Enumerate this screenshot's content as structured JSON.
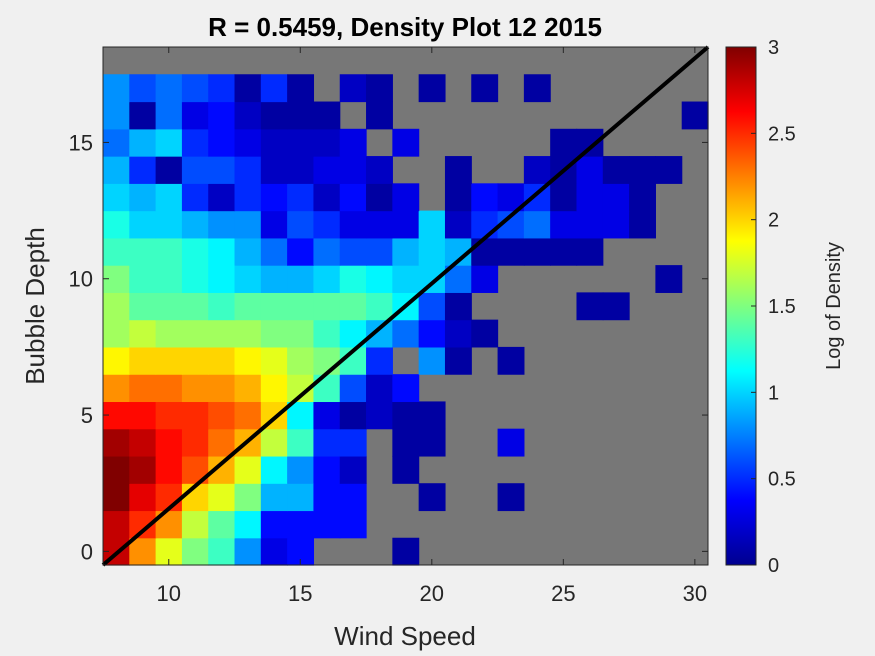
{
  "chart_data": {
    "type": "heatmap",
    "title": "R = 0.5459, Density Plot 12 2015",
    "xlabel": "Wind Speed",
    "ylabel": "Bubble Depth",
    "colorbar_label": "Log of Density",
    "colormap": "jet",
    "background_color": "#777777",
    "xlim": [
      7.5,
      30.5
    ],
    "ylim": [
      -0.5,
      18.5
    ],
    "clim": [
      0,
      3
    ],
    "xticks": [
      "10",
      "15",
      "20",
      "25",
      "30"
    ],
    "yticks": [
      "0",
      "5",
      "10",
      "15"
    ],
    "cbar_ticks": [
      "0",
      "0.5",
      "1",
      "1.5",
      "2",
      "2.5",
      "3"
    ],
    "bin_x_start": 7.5,
    "bin_x_width": 1,
    "bin_y_start": -0.5,
    "bin_y_width": 1,
    "grid": [
      [
        2.8,
        2.2,
        1.8,
        1.5,
        1.3,
        0.8,
        0.3,
        0.4,
        -1,
        -1,
        -1,
        0.1,
        -1,
        -1,
        -1,
        -1,
        -1,
        -1,
        -1,
        -1,
        -1,
        -1,
        -1
      ],
      [
        2.8,
        2.5,
        2.2,
        1.7,
        1.4,
        1.1,
        0.4,
        0.4,
        0.4,
        0.4,
        -1,
        -1,
        -1,
        -1,
        -1,
        -1,
        -1,
        -1,
        -1,
        -1,
        -1,
        -1,
        -1
      ],
      [
        3.0,
        2.7,
        2.5,
        2.0,
        1.8,
        1.5,
        0.9,
        0.9,
        0.4,
        0.4,
        -1,
        -1,
        0.1,
        -1,
        -1,
        0.1,
        -1,
        -1,
        -1,
        -1,
        -1,
        -1,
        -1
      ],
      [
        3.0,
        2.9,
        2.6,
        2.4,
        2.1,
        1.8,
        1.1,
        0.8,
        0.4,
        0.2,
        -1,
        0.1,
        -1,
        -1,
        -1,
        -1,
        -1,
        -1,
        -1,
        -1,
        -1,
        -1,
        -1
      ],
      [
        2.9,
        2.8,
        2.6,
        2.5,
        2.3,
        2.1,
        1.7,
        1.3,
        0.5,
        0.5,
        -1,
        0.1,
        0.1,
        -1,
        -1,
        0.3,
        -1,
        -1,
        -1,
        -1,
        -1,
        -1,
        -1
      ],
      [
        2.6,
        2.6,
        2.5,
        2.5,
        2.4,
        2.3,
        2.0,
        1.1,
        0.3,
        0.1,
        0.2,
        0.1,
        0.1,
        -1,
        -1,
        -1,
        -1,
        -1,
        -1,
        -1,
        -1,
        -1,
        -1
      ],
      [
        2.2,
        2.3,
        2.3,
        2.2,
        2.2,
        2.1,
        1.9,
        1.7,
        1.3,
        0.6,
        0.2,
        0.4,
        -1,
        -1,
        -1,
        -1,
        -1,
        -1,
        -1,
        -1,
        -1,
        -1,
        -1
      ],
      [
        1.9,
        2.0,
        2.0,
        2.0,
        2.0,
        1.9,
        1.8,
        1.6,
        1.5,
        1.3,
        0.5,
        -1,
        0.8,
        0.1,
        -1,
        0.1,
        -1,
        -1,
        -1,
        -1,
        -1,
        -1,
        -1
      ],
      [
        1.6,
        1.7,
        1.6,
        1.6,
        1.6,
        1.6,
        1.5,
        1.5,
        1.3,
        1.1,
        0.9,
        0.7,
        0.4,
        0.2,
        0.1,
        -1,
        -1,
        -1,
        -1,
        -1,
        -1,
        -1,
        -1
      ],
      [
        1.6,
        1.4,
        1.4,
        1.4,
        1.3,
        1.4,
        1.4,
        1.4,
        1.4,
        1.4,
        1.3,
        1.1,
        0.6,
        0.1,
        -1,
        -1,
        -1,
        -1,
        0.1,
        0.1,
        -1,
        -1,
        -1
      ],
      [
        1.5,
        1.3,
        1.3,
        1.2,
        1.1,
        1.0,
        0.9,
        0.9,
        1.0,
        1.2,
        1.1,
        1.0,
        1.0,
        0.7,
        0.3,
        -1,
        -1,
        -1,
        -1,
        -1,
        -1,
        0.1,
        -1
      ],
      [
        1.3,
        1.3,
        1.3,
        1.2,
        1.1,
        0.9,
        0.7,
        0.4,
        0.7,
        0.6,
        0.6,
        0.9,
        1.0,
        0.9,
        0.1,
        0.1,
        0.1,
        0.1,
        0.1,
        -1,
        -1,
        -1,
        -1
      ],
      [
        1.2,
        1.0,
        1.0,
        0.9,
        0.8,
        0.8,
        0.3,
        0.6,
        0.5,
        0.3,
        0.3,
        0.3,
        1.0,
        0.2,
        0.5,
        0.6,
        0.7,
        0.3,
        0.3,
        0.3,
        0.1,
        -1,
        -1
      ],
      [
        1.0,
        0.9,
        1.0,
        0.5,
        0.2,
        0.5,
        0.4,
        0.5,
        0.2,
        0.4,
        0.1,
        0.3,
        -1,
        0.1,
        0.4,
        0.3,
        0.5,
        0.1,
        0.3,
        0.3,
        0.1,
        -1,
        -1
      ],
      [
        0.9,
        0.5,
        0.1,
        0.6,
        0.6,
        0.5,
        0.2,
        0.2,
        0.3,
        0.3,
        0.2,
        -1,
        -1,
        0.1,
        -1,
        -1,
        0.2,
        0.1,
        0.3,
        0.1,
        0.1,
        0.1,
        -1
      ],
      [
        0.7,
        0.9,
        1.0,
        0.5,
        0.4,
        0.3,
        0.2,
        0.2,
        0.2,
        0.3,
        -1,
        0.3,
        -1,
        -1,
        -1,
        -1,
        -1,
        0.1,
        0.1,
        -1,
        -1,
        -1,
        -1
      ],
      [
        0.8,
        0.1,
        0.7,
        0.3,
        0.4,
        0.2,
        0.1,
        0.1,
        0.1,
        -1,
        0.1,
        -1,
        -1,
        -1,
        -1,
        -1,
        -1,
        -1,
        -1,
        -1,
        -1,
        -1,
        0.1
      ],
      [
        0.8,
        0.6,
        0.7,
        0.6,
        0.5,
        0.1,
        0.5,
        0.1,
        -1,
        0.2,
        0.1,
        -1,
        0.1,
        -1,
        0.1,
        -1,
        0.1,
        -1,
        -1,
        -1,
        -1,
        -1,
        -1
      ],
      [
        -1,
        -1,
        -1,
        -1,
        -1,
        -1,
        -1,
        -1,
        -1,
        -1,
        -1,
        -1,
        -1,
        -1,
        -1,
        -1,
        -1,
        -1,
        -1,
        -1,
        -1,
        -1,
        -1
      ]
    ],
    "fit_line": {
      "x": [
        7.5,
        30.5
      ],
      "y": [
        -0.5,
        18.5
      ],
      "color": "#000000"
    }
  }
}
